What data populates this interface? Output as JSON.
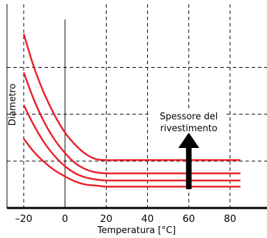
{
  "chart_data": {
    "type": "line",
    "title": "",
    "xlabel": "Temperatura [°C]",
    "ylabel": "Diametro",
    "xlim": [
      -20,
      85
    ],
    "ylim": [
      0,
      100
    ],
    "x_ticks": [
      -20,
      0,
      20,
      40,
      60,
      80
    ],
    "x_tick_labels": [
      "–20",
      "0",
      "20",
      "40",
      "60",
      "80"
    ],
    "y_tick_labels": [],
    "grid": true,
    "grid_style": "dashed",
    "zero_line_x": 0,
    "annotation": {
      "lines": [
        "Spessore del",
        "rivestimento"
      ],
      "arrow": "up",
      "x": 60
    },
    "colors": {
      "series": "#e8202a",
      "grid": "#000000",
      "arrow": "#000000"
    },
    "series": [
      {
        "x": [
          -20,
          -15,
          -10,
          -5,
          0,
          5,
          10,
          15,
          20,
          30,
          40,
          60,
          85
        ],
        "values": [
          85.5,
          69,
          56,
          45.5,
          37,
          31,
          26.5,
          24,
          23.5,
          23.5,
          23.5,
          23.5,
          23.5
        ]
      },
      {
        "x": [
          -20,
          -15,
          -10,
          -5,
          0,
          5,
          10,
          15,
          20,
          30,
          40,
          60,
          85
        ],
        "values": [
          66.5,
          53,
          42,
          33.5,
          27,
          22,
          19,
          17.5,
          17,
          17,
          17,
          17,
          17
        ]
      },
      {
        "x": [
          -20,
          -15,
          -10,
          -5,
          0,
          5,
          10,
          15,
          20,
          30,
          40,
          60,
          85
        ],
        "values": [
          50.5,
          40.5,
          32,
          25.5,
          20.5,
          17,
          15,
          14,
          13.5,
          13.5,
          13.5,
          13.5,
          13.5
        ]
      },
      {
        "x": [
          -20,
          -15,
          -10,
          -5,
          0,
          5,
          10,
          15,
          20,
          30,
          40,
          60,
          85
        ],
        "values": [
          34,
          27.5,
          22.5,
          18.5,
          15.5,
          13,
          11.5,
          11,
          10.5,
          10.5,
          10.5,
          10.5,
          10.5
        ]
      }
    ]
  }
}
